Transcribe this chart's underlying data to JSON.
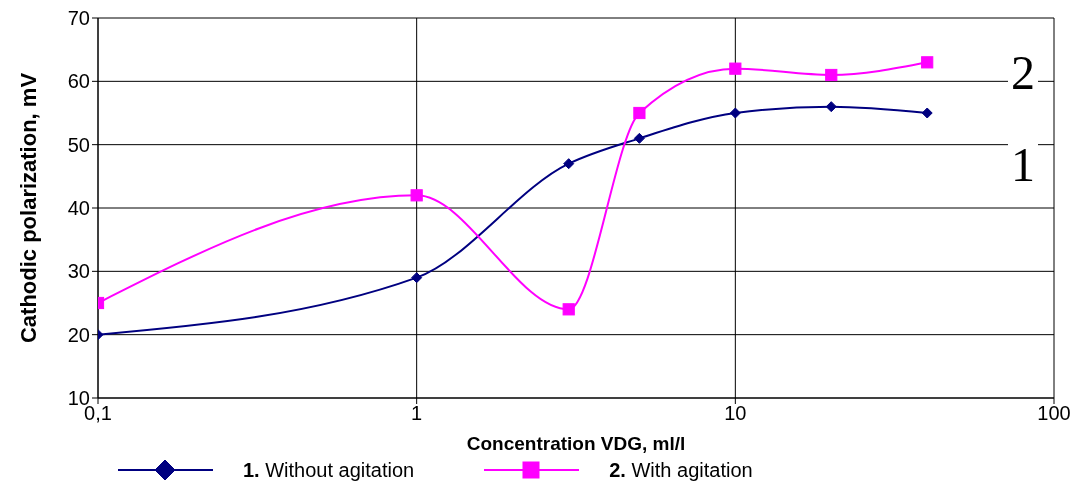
{
  "chart_data": {
    "type": "line",
    "xlabel": "Concentration VDG, ml/l",
    "ylabel": "Cathodic polarization, mV",
    "log": "x",
    "xlim": [
      0.1,
      100
    ],
    "xticks": [
      {
        "value": 0.1,
        "label": "0,1"
      },
      1,
      10,
      100
    ],
    "ylim": [
      10,
      70
    ],
    "yticks": [
      10,
      20,
      30,
      40,
      50,
      60,
      70
    ],
    "grid": true,
    "legend": "bottom",
    "line_style": "solid",
    "series": [
      {
        "name": "1. Without agitation",
        "color": "#000080",
        "marker": "diamond",
        "x": [
          0.1,
          1,
          3,
          5,
          10,
          20,
          40
        ],
        "values": [
          20,
          29,
          47,
          51,
          55,
          56,
          55
        ]
      },
      {
        "name": "2. With agitation",
        "color": "#ff00ff",
        "marker": "square",
        "x": [
          0.1,
          1,
          3,
          5,
          10,
          20,
          40
        ],
        "values": [
          25,
          42,
          24,
          55,
          62,
          61,
          63
        ]
      }
    ],
    "annotations": [
      "2",
      "1"
    ]
  }
}
